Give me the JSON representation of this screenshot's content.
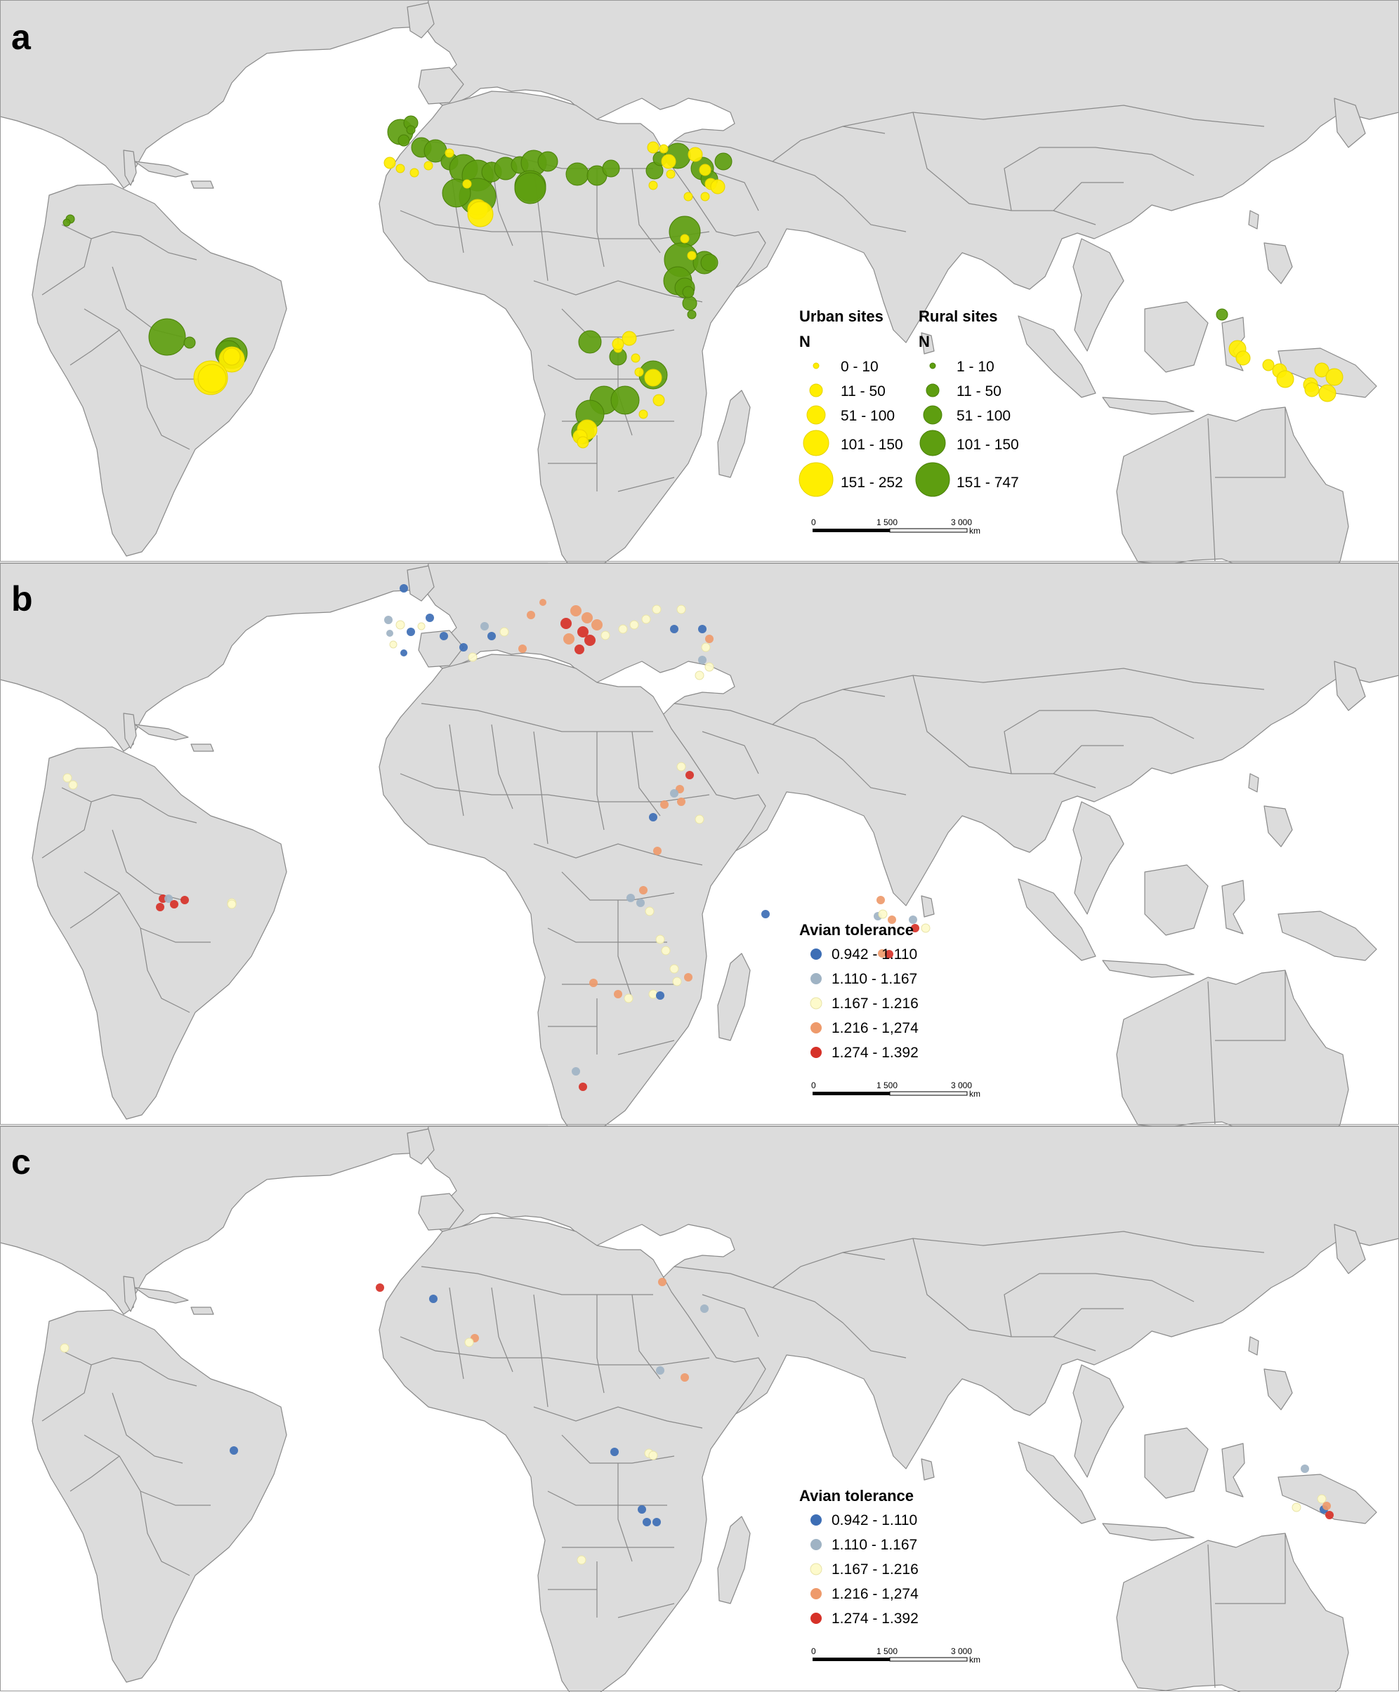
{
  "panels": [
    {
      "letter": "a",
      "legend": {
        "type": "size",
        "urban_title": "Urban sites",
        "rural_title": "Rural sites",
        "urban_n": "N",
        "rural_n": "N",
        "urban_color": "#ffee00",
        "rural_color": "#5e9e10",
        "urban_classes": [
          "0 - 10",
          "11 - 50",
          "51 - 100",
          "101 - 150",
          "151 - 252"
        ],
        "rural_classes": [
          "1 - 10",
          "11 - 50",
          "51 - 100",
          "101 - 150",
          "151 - 747"
        ]
      },
      "scalebar": {
        "labels": [
          "0",
          "1 500",
          "3 000"
        ],
        "unit": "km"
      }
    },
    {
      "letter": "b",
      "legend": {
        "type": "color",
        "title": "Avian tolerance",
        "classes": [
          {
            "label": "0.942 - 1.110",
            "color": "#3d6eb5"
          },
          {
            "label": "1.110 - 1.167",
            "color": "#9fb3c4"
          },
          {
            "label": "1.167 - 1.216",
            "color": "#fdfacb"
          },
          {
            "label": "1.216 - 1,274",
            "color": "#ee9a6b"
          },
          {
            "label": "1.274 - 1.392",
            "color": "#d63128"
          }
        ]
      },
      "scalebar": {
        "labels": [
          "0",
          "1 500",
          "3 000"
        ],
        "unit": "km"
      }
    },
    {
      "letter": "c",
      "legend": {
        "type": "color",
        "title": "Avian tolerance",
        "classes": [
          {
            "label": "0.942 - 1.110",
            "color": "#3d6eb5"
          },
          {
            "label": "1.110 - 1.167",
            "color": "#9fb3c4"
          },
          {
            "label": "1.167 - 1.216",
            "color": "#fdfacb"
          },
          {
            "label": "1.216 - 1,274",
            "color": "#ee9a6b"
          },
          {
            "label": "1.274 - 1.392",
            "color": "#d63128"
          }
        ]
      },
      "scalebar": {
        "labels": [
          "0",
          "1 500",
          "3 000"
        ],
        "unit": "km"
      }
    }
  ],
  "colors": {
    "land": "#dcdcdc",
    "sea": "#ffffff",
    "border": "#8a8a8a",
    "panel_frame": "#999999"
  }
}
